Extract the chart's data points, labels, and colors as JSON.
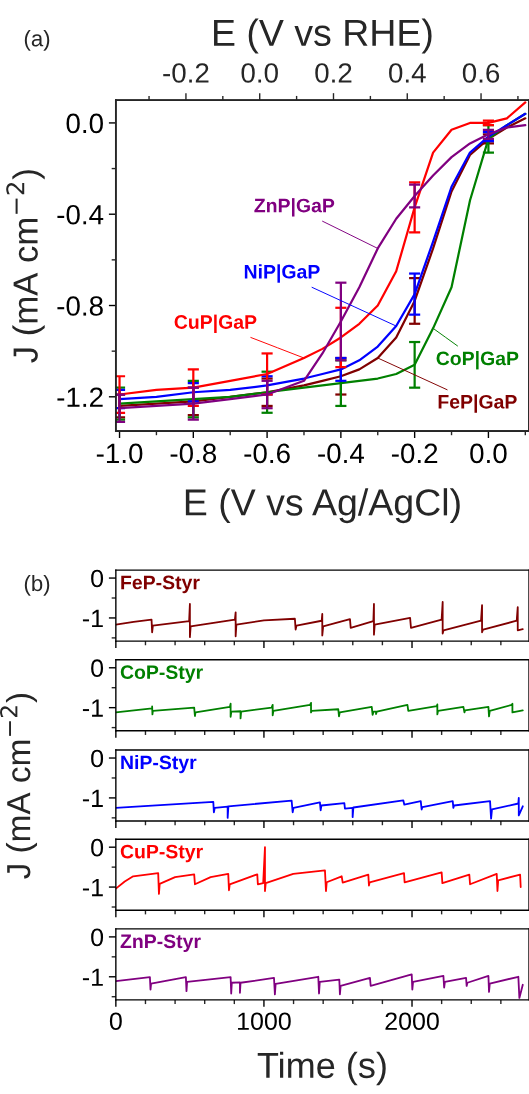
{
  "chart_data": [
    {
      "type": "line",
      "annotations": [
        "(a)"
      ],
      "xlabel": "E (V vs Ag/AgCl)",
      "x2label": "E (V vs RHE)",
      "ylabel": "J (mA cm$^{−2}$)",
      "x": [
        -1.0,
        -0.9,
        -0.8,
        -0.7,
        -0.6,
        -0.5,
        -0.45,
        -0.4,
        -0.35,
        -0.3,
        -0.25,
        -0.2,
        -0.15,
        -0.1,
        -0.05,
        0.0,
        0.05,
        0.1
      ],
      "series": [
        {
          "name": "FeP|GaP",
          "color": "#800000",
          "values": [
            -1.24,
            -1.23,
            -1.22,
            -1.2,
            -1.18,
            -1.15,
            -1.13,
            -1.11,
            -1.08,
            -1.03,
            -0.94,
            -0.78,
            -0.55,
            -0.3,
            -0.14,
            -0.07,
            -0.02,
            0.02
          ],
          "errors": [
            0.05,
            null,
            0.06,
            null,
            0.06,
            null,
            null,
            0.08,
            null,
            null,
            null,
            0.1,
            null,
            null,
            null,
            0.02,
            null,
            null
          ]
        },
        {
          "name": "CoP|GaP",
          "color": "#008000",
          "values": [
            -1.23,
            -1.22,
            -1.21,
            -1.2,
            -1.18,
            -1.16,
            -1.15,
            -1.14,
            -1.13,
            -1.12,
            -1.1,
            -1.06,
            -0.9,
            -0.72,
            -0.34,
            -0.07,
            -0.01,
            0.04
          ],
          "errors": [
            0.07,
            null,
            0.08,
            null,
            0.09,
            null,
            null,
            0.1,
            null,
            null,
            null,
            0.1,
            null,
            null,
            null,
            0.06,
            null,
            null
          ]
        },
        {
          "name": "NiP|GaP",
          "color": "#0000ff",
          "values": [
            -1.21,
            -1.2,
            -1.18,
            -1.17,
            -1.15,
            -1.12,
            -1.1,
            -1.08,
            -1.04,
            -0.98,
            -0.89,
            -0.75,
            -0.52,
            -0.28,
            -0.13,
            -0.06,
            -0.01,
            0.04
          ],
          "errors": [
            0.04,
            null,
            0.04,
            null,
            0.04,
            null,
            null,
            0.05,
            null,
            null,
            null,
            0.09,
            null,
            null,
            null,
            0.02,
            null,
            null
          ]
        },
        {
          "name": "CuP|GaP",
          "color": "#ff0000",
          "values": [
            -1.19,
            -1.17,
            -1.16,
            -1.13,
            -1.1,
            -1.03,
            -0.99,
            -0.94,
            -0.88,
            -0.8,
            -0.65,
            -0.37,
            -0.13,
            -0.03,
            0.0,
            0.0,
            0.02,
            0.09
          ],
          "errors": [
            0.08,
            null,
            0.08,
            null,
            0.09,
            null,
            null,
            0.13,
            null,
            null,
            null,
            0.11,
            null,
            null,
            null,
            0.01,
            null,
            null
          ]
        },
        {
          "name": "ZnP|GaP",
          "color": "#800080",
          "values": [
            -1.25,
            -1.24,
            -1.23,
            -1.21,
            -1.19,
            -1.13,
            -1.01,
            -0.87,
            -0.72,
            -0.55,
            -0.42,
            -0.32,
            -0.23,
            -0.15,
            -0.09,
            -0.05,
            -0.02,
            -0.01
          ],
          "errors": [
            0.06,
            null,
            0.07,
            null,
            0.06,
            null,
            null,
            0.17,
            null,
            null,
            null,
            0.05,
            null,
            null,
            null,
            0.02,
            null,
            null
          ]
        }
      ],
      "xlim": [
        -1.01,
        0.11
      ],
      "xticks": [
        {
          "value": -1.0,
          "label": "-1.0"
        },
        {
          "value": -0.9,
          "label": null
        },
        -0.8,
        {
          "value": -0.7,
          "label": null
        },
        -0.6,
        {
          "value": -0.5,
          "label": null
        },
        -0.4,
        {
          "value": -0.3,
          "label": null
        },
        -0.2,
        {
          "value": -0.1,
          "label": null
        },
        {
          "value": 0.0,
          "label": "0.0"
        },
        {
          "value": 0.1,
          "label": null
        }
      ],
      "x2lim": [
        -0.39,
        0.73
      ],
      "x2ticks": [
        {
          "value": -0.3,
          "label": null
        },
        -0.2,
        {
          "value": -0.1,
          "label": null
        },
        {
          "value": 0.0,
          "label": "0.0"
        },
        {
          "value": 0.1,
          "label": null
        },
        0.2,
        {
          "value": 0.3,
          "label": null
        },
        0.4,
        {
          "value": 0.5,
          "label": null
        },
        0.6,
        {
          "value": 0.7,
          "label": null
        }
      ],
      "ylim": [
        -1.35,
        0.1
      ],
      "yticks": [
        {
          "value": 0.0,
          "label": "0.0"
        },
        {
          "value": -0.2,
          "label": null
        },
        -0.4,
        {
          "value": -0.6,
          "label": null
        },
        -0.8,
        {
          "value": -1.0,
          "label": null
        },
        -1.2
      ]
    },
    {
      "type": "line",
      "annotations": [
        "(b)"
      ],
      "tick_labels": "y",
      "xlim": [
        0,
        2790
      ],
      "xticks": [
        0,
        {
          "value": 200,
          "label": null
        },
        {
          "value": 400,
          "label": null
        },
        {
          "value": 600,
          "label": null
        },
        {
          "value": 800,
          "label": null
        },
        1000,
        {
          "value": 1200,
          "label": null
        },
        {
          "value": 1400,
          "label": null
        },
        {
          "value": 1600,
          "label": null
        },
        {
          "value": 1800,
          "label": null
        },
        2000,
        {
          "value": 2200,
          "label": null
        },
        {
          "value": 2400,
          "label": null
        },
        {
          "value": 2600,
          "label": null
        }
      ],
      "ylim": [
        -1.58,
        0.2
      ],
      "yticks": [
        0,
        {
          "value": -0.5,
          "label": null
        },
        -1,
        {
          "value": -1.5,
          "label": null
        }
      ],
      "series": [
        {
          "name": "FeP-Styr",
          "color": "#800000",
          "x": [
            0,
            120,
            241,
            245,
            250,
            495,
            500,
            500,
            505,
            804,
            809,
            809,
            814,
            1000,
            1209,
            1214,
            1220,
            1390,
            1394,
            1394,
            1400,
            1581,
            1586,
            1739,
            1743,
            1743,
            1748,
            1987,
            1993,
            2200,
            2207,
            2207,
            2213,
            2466,
            2473,
            2473,
            2480,
            2707,
            2714,
            2714,
            2748
          ],
          "values": [
            -1.17,
            -1.1,
            -1.04,
            -1.36,
            -1.19,
            -1.08,
            -0.65,
            -1.48,
            -1.21,
            -1.04,
            -0.86,
            -1.46,
            -1.17,
            -1.06,
            -1.02,
            -1.29,
            -1.19,
            -1.07,
            -0.9,
            -1.44,
            -1.21,
            -1.03,
            -1.25,
            -1.08,
            -0.65,
            -1.42,
            -1.17,
            -1.0,
            -1.25,
            -1.04,
            -0.6,
            -1.39,
            -1.31,
            -1.07,
            -0.68,
            -1.36,
            -1.29,
            -1.07,
            -0.73,
            -1.31,
            -1.28
          ]
        }
      ]
    },
    {
      "type": "line",
      "tick_labels": "y",
      "xlim": [
        0,
        2790
      ],
      "xticks": [
        0,
        {
          "value": 200,
          "label": null
        },
        {
          "value": 400,
          "label": null
        },
        {
          "value": 600,
          "label": null
        },
        {
          "value": 800,
          "label": null
        },
        1000,
        {
          "value": 1200,
          "label": null
        },
        {
          "value": 1400,
          "label": null
        },
        {
          "value": 1600,
          "label": null
        },
        {
          "value": 1800,
          "label": null
        },
        2000,
        {
          "value": 2200,
          "label": null
        },
        {
          "value": 2400,
          "label": null
        },
        {
          "value": 2600,
          "label": null
        }
      ],
      "ylim": [
        -1.58,
        0.2
      ],
      "yticks": [
        0,
        {
          "value": -0.5,
          "label": null
        },
        -1,
        {
          "value": -1.5,
          "label": null
        }
      ],
      "series": [
        {
          "name": "CoP-Styr",
          "color": "#008000",
          "x": [
            0,
            245,
            245,
            247,
            250,
            529,
            534,
            538,
            770,
            775,
            775,
            780,
            842,
            842,
            846,
            1052,
            1059,
            1059,
            1064,
            1311,
            1318,
            1318,
            1322,
            1502,
            1507,
            1512,
            1728,
            1734,
            1740,
            1757,
            1757,
            1762,
            1969,
            1975,
            2167,
            2171,
            2171,
            2176,
            2347,
            2354,
            2358,
            2516,
            2520,
            2525,
            2673,
            2678,
            2678,
            2748
          ],
          "values": [
            -1.12,
            -1.02,
            -0.97,
            -1.17,
            -1.08,
            -1.0,
            -1.21,
            -1.12,
            -0.98,
            -0.9,
            -1.23,
            -1.1,
            -1.09,
            -1.27,
            -1.1,
            -1.0,
            -0.93,
            -1.19,
            -1.08,
            -0.93,
            -0.88,
            -1.12,
            -1.08,
            -1.04,
            -1.22,
            -1.12,
            -0.98,
            -1.18,
            -1.1,
            -1.1,
            -1.16,
            -1.1,
            -0.93,
            -1.08,
            -0.96,
            -0.92,
            -1.17,
            -1.08,
            -0.98,
            -1.12,
            -1.07,
            -0.98,
            -1.22,
            -1.08,
            -0.93,
            -0.9,
            -1.12,
            -1.07
          ]
        }
      ]
    },
    {
      "type": "line",
      "tick_labels": "y",
      "ylabel": "J (mA cm$^{−2}$)",
      "xlim": [
        0,
        2790
      ],
      "xticks": [
        0,
        {
          "value": 200,
          "label": null
        },
        {
          "value": 400,
          "label": null
        },
        {
          "value": 600,
          "label": null
        },
        {
          "value": 800,
          "label": null
        },
        1000,
        {
          "value": 1200,
          "label": null
        },
        {
          "value": 1400,
          "label": null
        },
        {
          "value": 1600,
          "label": null
        },
        {
          "value": 1800,
          "label": null
        },
        2000,
        {
          "value": 2200,
          "label": null
        },
        {
          "value": 2400,
          "label": null
        },
        {
          "value": 2600,
          "label": null
        }
      ],
      "ylim": [
        -1.58,
        0.2
      ],
      "yticks": [
        0,
        {
          "value": -0.5,
          "label": null
        },
        -1,
        {
          "value": -1.5,
          "label": null
        }
      ],
      "series": [
        {
          "name": "NiP-Styr",
          "color": "#0000ff",
          "x": [
            0,
            300,
            658,
            662,
            668,
            755,
            755,
            760,
            1187,
            1194,
            1200,
            1378,
            1383,
            1388,
            1543,
            1547,
            1599,
            1599,
            1604,
            1941,
            1948,
            2059,
            2065,
            2070,
            2275,
            2279,
            2284,
            2527,
            2534,
            2540,
            2718,
            2721,
            2721,
            2748
          ],
          "values": [
            -1.25,
            -1.18,
            -1.1,
            -1.36,
            -1.25,
            -1.22,
            -1.5,
            -1.21,
            -1.07,
            -1.36,
            -1.25,
            -1.11,
            -1.31,
            -1.19,
            -1.13,
            -1.27,
            -1.25,
            -1.48,
            -1.24,
            -1.06,
            -1.17,
            -1.08,
            -1.29,
            -1.23,
            -1.08,
            -1.25,
            -1.19,
            -1.08,
            -1.52,
            -1.29,
            -1.14,
            -1.0,
            -1.44,
            -1.21
          ]
        }
      ]
    },
    {
      "type": "line",
      "tick_labels": "y",
      "xlim": [
        0,
        2790
      ],
      "xticks": [
        0,
        {
          "value": 200,
          "label": null
        },
        {
          "value": 400,
          "label": null
        },
        {
          "value": 600,
          "label": null
        },
        {
          "value": 800,
          "label": null
        },
        1000,
        {
          "value": 1200,
          "label": null
        },
        {
          "value": 1400,
          "label": null
        },
        {
          "value": 1600,
          "label": null
        },
        {
          "value": 1800,
          "label": null
        },
        2000,
        {
          "value": 2200,
          "label": null
        },
        {
          "value": 2400,
          "label": null
        },
        {
          "value": 2600,
          "label": null
        }
      ],
      "ylim": [
        -1.58,
        0.2
      ],
      "yticks": [
        0,
        {
          "value": -0.5,
          "label": null
        },
        -1,
        {
          "value": -1.5,
          "label": null
        }
      ],
      "series": [
        {
          "name": "CuP-Styr",
          "color": "#ff0000",
          "x": [
            0,
            60,
            117,
            286,
            291,
            296,
            400,
            529,
            534,
            640,
            759,
            764,
            769,
            955,
            959,
            995,
            1007,
            1007,
            1012,
            1198,
            1412,
            1419,
            1424,
            1525,
            1532,
            1705,
            1709,
            1714,
            1946,
            1950,
            2200,
            2205,
            2387,
            2392,
            2572,
            2577,
            2582,
            2730,
            2734
          ],
          "values": [
            -1.04,
            -0.86,
            -0.73,
            -0.65,
            -1.17,
            -0.92,
            -0.75,
            -0.68,
            -0.93,
            -0.75,
            -0.67,
            -1.08,
            -0.93,
            -0.68,
            -0.93,
            -0.9,
            0.0,
            -1.1,
            -0.9,
            -0.67,
            -0.58,
            -1.1,
            -0.88,
            -0.73,
            -0.89,
            -0.69,
            -0.96,
            -0.88,
            -0.65,
            -0.88,
            -0.63,
            -0.9,
            -0.69,
            -0.93,
            -0.67,
            -1.1,
            -0.83,
            -0.69,
            -1.0
          ]
        }
      ]
    },
    {
      "type": "line",
      "xlabel": "Time (s)",
      "xlim": [
        0,
        2790
      ],
      "xticks": [
        0,
        {
          "value": 200,
          "label": null
        },
        {
          "value": 400,
          "label": null
        },
        {
          "value": 600,
          "label": null
        },
        {
          "value": 800,
          "label": null
        },
        1000,
        {
          "value": 1200,
          "label": null
        },
        {
          "value": 1400,
          "label": null
        },
        {
          "value": 1600,
          "label": null
        },
        {
          "value": 1800,
          "label": null
        },
        2000,
        {
          "value": 2200,
          "label": null
        },
        {
          "value": 2400,
          "label": null
        },
        {
          "value": 2600,
          "label": null
        }
      ],
      "ylim": [
        -1.58,
        0.2
      ],
      "yticks": [
        0,
        {
          "value": -0.5,
          "label": null
        },
        -1,
        {
          "value": -1.5,
          "label": null
        }
      ],
      "series": [
        {
          "name": "ZnP-Styr",
          "color": "#800080",
          "x": [
            0,
            230,
            234,
            238,
            473,
            477,
            481,
            775,
            779,
            783,
            838,
            838,
            842,
            1068,
            1074,
            1079,
            1367,
            1372,
            1377,
            1509,
            1513,
            1518,
            1716,
            1721,
            1998,
            2002,
            2007,
            2212,
            2217,
            2222,
            2365,
            2369,
            2374,
            2516,
            2520,
            2525,
            2718,
            2725,
            2748
          ],
          "values": [
            -1.11,
            -1.01,
            -1.32,
            -1.17,
            -1.01,
            -1.36,
            -1.13,
            -1.01,
            -1.42,
            -1.15,
            -1.14,
            -1.4,
            -1.15,
            -1.03,
            -1.44,
            -1.18,
            -1.0,
            -1.42,
            -1.13,
            -1.07,
            -1.44,
            -1.23,
            -1.03,
            -1.23,
            -0.94,
            -1.32,
            -1.13,
            -0.98,
            -1.27,
            -1.13,
            -1.03,
            -1.23,
            -1.15,
            -0.98,
            -1.38,
            -1.17,
            -1.0,
            -1.53,
            -1.2
          ]
        }
      ]
    }
  ]
}
